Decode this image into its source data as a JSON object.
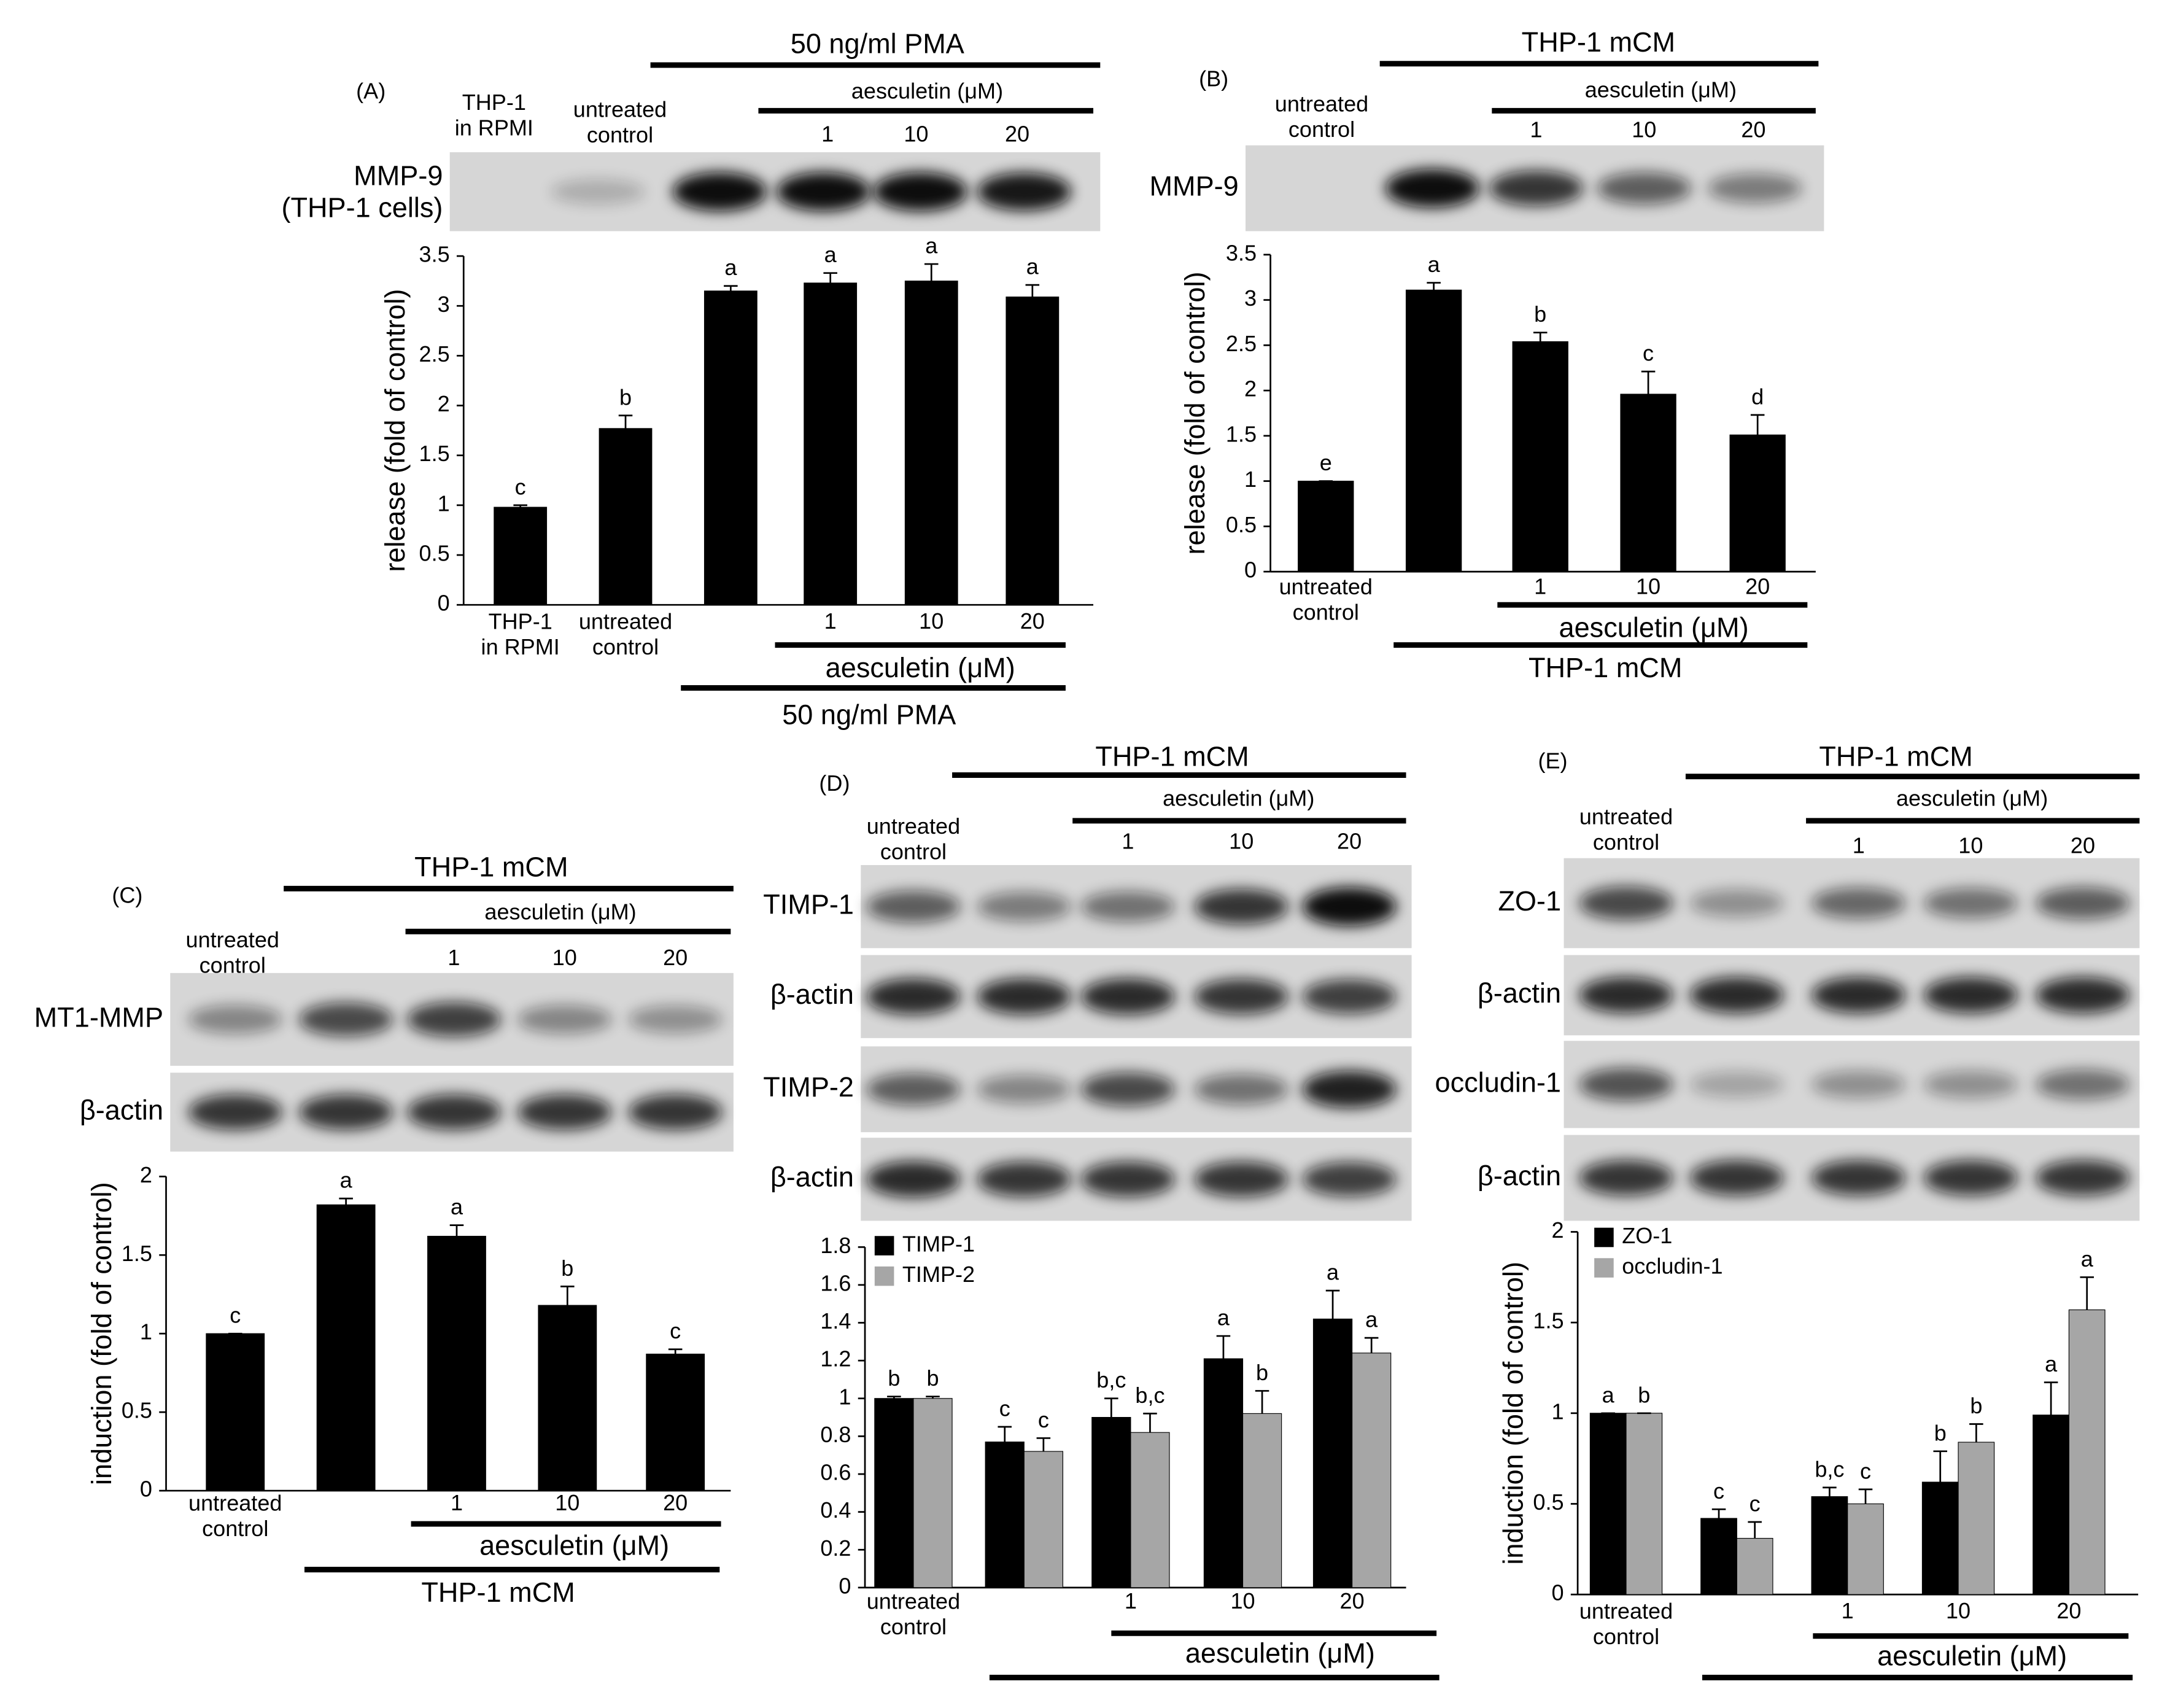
{
  "chart_data": [
    {
      "type": "bar",
      "panel": "(A)",
      "ylabel": "release (fold of control)",
      "blot": {
        "header": [
          "50 ng/ml PMA",
          "aesculetin (μM)"
        ],
        "columns": [
          "THP-1\nin RPMI",
          "untreated\ncontrol",
          "1",
          "10",
          "20"
        ],
        "rows": [
          "MMP-9\n(THP-1 cells)"
        ]
      },
      "categories": [
        "THP-1\nin RPMI",
        "untreated\ncontrol",
        null,
        "1",
        "10",
        "20"
      ],
      "brackets": [
        "aesculetin (μM)",
        "50 ng/ml PMA"
      ],
      "color": "#000000",
      "values": [
        0.98,
        1.77,
        3.15,
        3.23,
        3.25,
        3.09
      ],
      "errors": [
        0.02,
        0.13,
        0.05,
        0.1,
        0.17,
        0.12
      ],
      "letters": [
        "c",
        "b",
        "a",
        "a",
        "a",
        "a"
      ],
      "ylim": [
        0,
        3.5
      ],
      "yticks": [
        0,
        0.5,
        1,
        1.5,
        2,
        2.5,
        3,
        3.5
      ]
    },
    {
      "type": "bar",
      "panel": "(B)",
      "ylabel": "release (fold of control)",
      "blot": {
        "header": [
          "THP-1 mCM",
          "aesculetin (μM)"
        ],
        "columns": [
          "untreated\ncontrol",
          "1",
          "10",
          "20"
        ],
        "rows": [
          "MMP-9"
        ]
      },
      "categories": [
        "untreated\ncontrol",
        null,
        "1",
        "10",
        "20"
      ],
      "brackets": [
        "aesculetin (μM)",
        "THP-1 mCM"
      ],
      "color": "#000000",
      "values": [
        1.0,
        3.11,
        2.54,
        1.96,
        1.51
      ],
      "errors": [
        0,
        0.08,
        0.1,
        0.25,
        0.22
      ],
      "letters": [
        "e",
        "a",
        "b",
        "c",
        "d"
      ],
      "ylim": [
        0,
        3.5
      ],
      "yticks": [
        0,
        0.5,
        1,
        1.5,
        2,
        2.5,
        3,
        3.5
      ]
    },
    {
      "type": "bar",
      "panel": "(C)",
      "ylabel": "induction (fold of control)",
      "blot": {
        "header": [
          "THP-1 mCM",
          "aesculetin (μM)"
        ],
        "columns": [
          "untreated\ncontrol",
          "1",
          "10",
          "20"
        ],
        "rows": [
          "MT1-MMP",
          "β-actin"
        ]
      },
      "categories": [
        "untreated\ncontrol",
        null,
        "1",
        "10",
        "20"
      ],
      "brackets": [
        "aesculetin (μM)",
        "THP-1 mCM"
      ],
      "color": "#000000",
      "values": [
        1.0,
        1.82,
        1.62,
        1.18,
        0.87
      ],
      "errors": [
        0,
        0.04,
        0.07,
        0.12,
        0.03
      ],
      "letters": [
        "c",
        "a",
        "a",
        "b",
        "c"
      ],
      "ylim": [
        0,
        2
      ],
      "yticks": [
        0,
        0.5,
        1,
        1.5,
        2
      ]
    },
    {
      "type": "bar",
      "panel": "(D)",
      "blot": {
        "header": [
          "THP-1 mCM",
          "aesculetin (μM)"
        ],
        "columns": [
          "untreated\ncontrol",
          "1",
          "10",
          "20"
        ],
        "rows": [
          "TIMP-1",
          "β-actin",
          "TIMP-2",
          "β-actin"
        ]
      },
      "categories": [
        "untreated\ncontrol",
        null,
        "1",
        "10",
        "20"
      ],
      "brackets": [
        "aesculetin (μM)"
      ],
      "legend": "upper left",
      "series": [
        {
          "name": "TIMP-1",
          "color": "#000000",
          "values": [
            1.0,
            0.77,
            0.9,
            1.21,
            1.42
          ],
          "errors": [
            0.01,
            0.08,
            0.1,
            0.12,
            0.15
          ],
          "letters": [
            "b",
            "c",
            "b,c",
            "a",
            "a"
          ]
        },
        {
          "name": "TIMP-2",
          "color": "#a6a6a6",
          "values": [
            1.0,
            0.72,
            0.82,
            0.92,
            1.24
          ],
          "errors": [
            0.01,
            0.07,
            0.1,
            0.12,
            0.08
          ],
          "letters": [
            "b",
            "c",
            "b,c",
            "b",
            "a"
          ]
        }
      ],
      "ylim": [
        0,
        1.8
      ],
      "yticks": [
        0,
        0.2,
        0.4,
        0.6,
        0.8,
        1,
        1.2,
        1.4,
        1.6,
        1.8
      ]
    },
    {
      "type": "bar",
      "panel": "(E)",
      "ylabel": "induction (fold of control)",
      "blot": {
        "header": [
          "THP-1 mCM",
          "aesculetin (μM)"
        ],
        "columns": [
          "untreated\ncontrol",
          "1",
          "10",
          "20"
        ],
        "rows": [
          "ZO-1",
          "β-actin",
          "occludin-1",
          "β-actin"
        ]
      },
      "categories": [
        "untreated\ncontrol",
        null,
        "1",
        "10",
        "20"
      ],
      "brackets": [
        "aesculetin (μM)"
      ],
      "legend": "upper left",
      "series": [
        {
          "name": "ZO-1",
          "color": "#000000",
          "values": [
            1.0,
            0.42,
            0.54,
            0.62,
            0.99
          ],
          "errors": [
            0,
            0.05,
            0.05,
            0.17,
            0.18
          ],
          "letters": [
            "a",
            "c",
            "b,c",
            "b",
            "a"
          ]
        },
        {
          "name": "occludin-1",
          "color": "#a6a6a6",
          "values": [
            1.0,
            0.31,
            0.5,
            0.84,
            1.57
          ],
          "errors": [
            0,
            0.09,
            0.08,
            0.1,
            0.18
          ],
          "letters": [
            "b",
            "c",
            "c",
            "b",
            "a"
          ]
        }
      ],
      "ylim": [
        0,
        2
      ],
      "yticks": [
        0,
        0.5,
        1,
        1.5,
        2
      ]
    }
  ]
}
